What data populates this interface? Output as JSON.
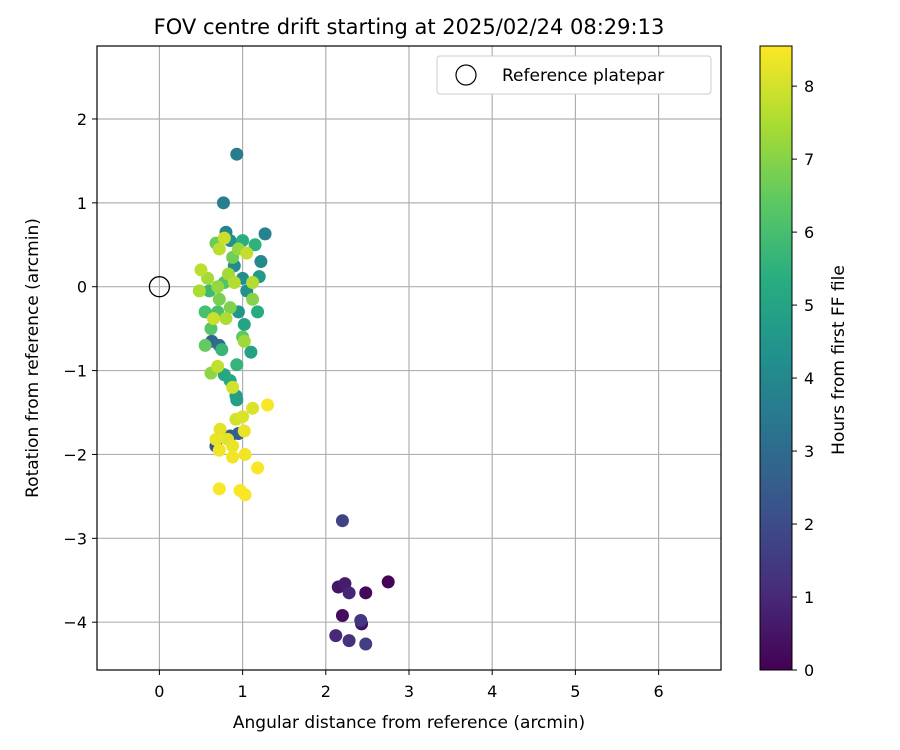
{
  "chart_data": {
    "type": "scatter",
    "title": "FOV centre drift starting at 2025/02/24 08:29:13",
    "xlabel": "Angular distance from reference (arcmin)",
    "ylabel": "Rotation from reference (arcmin)",
    "xlim": [
      -0.75,
      6.75
    ],
    "ylim": [
      -4.57,
      2.87
    ],
    "xticks": [
      0,
      1,
      2,
      3,
      4,
      5,
      6
    ],
    "yticks": [
      -4,
      -3,
      -2,
      -1,
      0,
      1,
      2
    ],
    "grid": true,
    "legend": {
      "position": "top-right",
      "entries": [
        "Reference platepar"
      ]
    },
    "reference_point": {
      "name": "Reference platepar",
      "x": 0,
      "y": 0,
      "marker": "open-circle"
    },
    "colorbar": {
      "label": "Hours from first FF file",
      "min": 0,
      "max": 8.55,
      "ticks": [
        0,
        1,
        2,
        3,
        4,
        5,
        6,
        7,
        8
      ],
      "colormap": "viridis"
    },
    "points": [
      {
        "x": 2.75,
        "y": -3.52,
        "c": 0.1
      },
      {
        "x": 2.48,
        "y": -3.65,
        "c": 0.2
      },
      {
        "x": 2.43,
        "y": -4.02,
        "c": 0.4
      },
      {
        "x": 2.2,
        "y": -3.92,
        "c": 0.3
      },
      {
        "x": 2.15,
        "y": -3.58,
        "c": 0.5
      },
      {
        "x": 2.23,
        "y": -3.54,
        "c": 0.7
      },
      {
        "x": 2.28,
        "y": -3.65,
        "c": 0.9
      },
      {
        "x": 2.12,
        "y": -4.16,
        "c": 1.0
      },
      {
        "x": 2.28,
        "y": -4.22,
        "c": 1.2
      },
      {
        "x": 2.42,
        "y": -3.98,
        "c": 1.4
      },
      {
        "x": 2.48,
        "y": -4.26,
        "c": 1.6
      },
      {
        "x": 2.2,
        "y": -2.79,
        "c": 1.7
      },
      {
        "x": 0.68,
        "y": -1.9,
        "c": 2.2
      },
      {
        "x": 0.85,
        "y": -1.78,
        "c": 2.5
      },
      {
        "x": 0.95,
        "y": -1.75,
        "c": 2.6
      },
      {
        "x": 0.63,
        "y": -0.65,
        "c": 2.8
      },
      {
        "x": 0.72,
        "y": -0.7,
        "c": 3.0
      },
      {
        "x": 0.93,
        "y": 1.58,
        "c": 3.6
      },
      {
        "x": 0.77,
        "y": 1.0,
        "c": 3.7
      },
      {
        "x": 1.27,
        "y": 0.63,
        "c": 3.8
      },
      {
        "x": 0.8,
        "y": 0.65,
        "c": 3.9
      },
      {
        "x": 1.22,
        "y": 0.3,
        "c": 4.0
      },
      {
        "x": 0.9,
        "y": 0.25,
        "c": 4.1
      },
      {
        "x": 1.0,
        "y": 0.1,
        "c": 4.2
      },
      {
        "x": 0.85,
        "y": 0.55,
        "c": 4.3
      },
      {
        "x": 1.05,
        "y": -0.05,
        "c": 4.4
      },
      {
        "x": 0.95,
        "y": -0.3,
        "c": 4.5
      },
      {
        "x": 1.2,
        "y": 0.12,
        "c": 4.6
      },
      {
        "x": 0.92,
        "y": -1.3,
        "c": 4.7
      },
      {
        "x": 0.93,
        "y": -1.35,
        "c": 4.8
      },
      {
        "x": 1.1,
        "y": -0.78,
        "c": 4.9
      },
      {
        "x": 1.02,
        "y": -0.45,
        "c": 5.0
      },
      {
        "x": 0.78,
        "y": -1.05,
        "c": 5.1
      },
      {
        "x": 0.85,
        "y": -1.12,
        "c": 5.2
      },
      {
        "x": 1.18,
        "y": -0.3,
        "c": 5.3
      },
      {
        "x": 1.0,
        "y": 0.55,
        "c": 5.4
      },
      {
        "x": 1.15,
        "y": 0.5,
        "c": 5.5
      },
      {
        "x": 0.93,
        "y": -0.93,
        "c": 5.6
      },
      {
        "x": 0.75,
        "y": -0.75,
        "c": 5.7
      },
      {
        "x": 0.6,
        "y": -0.05,
        "c": 5.8
      },
      {
        "x": 0.55,
        "y": -0.3,
        "c": 6.0
      },
      {
        "x": 0.7,
        "y": -0.3,
        "c": 6.1
      },
      {
        "x": 0.78,
        "y": 0.05,
        "c": 6.2
      },
      {
        "x": 0.62,
        "y": -0.5,
        "c": 6.3
      },
      {
        "x": 1.0,
        "y": -0.6,
        "c": 6.4
      },
      {
        "x": 0.55,
        "y": -0.7,
        "c": 6.5
      },
      {
        "x": 0.68,
        "y": 0.52,
        "c": 6.6
      },
      {
        "x": 0.88,
        "y": 0.35,
        "c": 6.7
      },
      {
        "x": 0.72,
        "y": -0.15,
        "c": 6.8
      },
      {
        "x": 0.85,
        "y": -0.25,
        "c": 6.9
      },
      {
        "x": 1.12,
        "y": -0.15,
        "c": 7.0
      },
      {
        "x": 0.62,
        "y": -1.03,
        "c": 7.1
      },
      {
        "x": 0.7,
        "y": 0.0,
        "c": 7.2
      },
      {
        "x": 0.95,
        "y": 0.45,
        "c": 7.2
      },
      {
        "x": 1.02,
        "y": -0.65,
        "c": 7.3
      },
      {
        "x": 0.58,
        "y": 0.1,
        "c": 7.4
      },
      {
        "x": 0.83,
        "y": 0.15,
        "c": 7.4
      },
      {
        "x": 0.48,
        "y": -0.05,
        "c": 7.5
      },
      {
        "x": 0.8,
        "y": -0.38,
        "c": 7.5
      },
      {
        "x": 0.9,
        "y": 0.05,
        "c": 7.6
      },
      {
        "x": 1.12,
        "y": 0.05,
        "c": 7.6
      },
      {
        "x": 0.5,
        "y": 0.2,
        "c": 7.7
      },
      {
        "x": 0.72,
        "y": 0.45,
        "c": 7.7
      },
      {
        "x": 1.05,
        "y": 0.4,
        "c": 7.8
      },
      {
        "x": 0.7,
        "y": -0.95,
        "c": 7.8
      },
      {
        "x": 0.65,
        "y": -0.38,
        "c": 7.9
      },
      {
        "x": 0.78,
        "y": 0.58,
        "c": 7.9
      },
      {
        "x": 0.88,
        "y": -1.2,
        "c": 8.0
      },
      {
        "x": 0.92,
        "y": -1.58,
        "c": 8.0
      },
      {
        "x": 1.12,
        "y": -1.45,
        "c": 8.1
      },
      {
        "x": 1.0,
        "y": -1.55,
        "c": 8.1
      },
      {
        "x": 0.73,
        "y": -1.7,
        "c": 8.2
      },
      {
        "x": 0.82,
        "y": -1.82,
        "c": 8.2
      },
      {
        "x": 1.02,
        "y": -1.72,
        "c": 8.3
      },
      {
        "x": 0.68,
        "y": -1.82,
        "c": 8.3
      },
      {
        "x": 0.88,
        "y": -1.9,
        "c": 8.3
      },
      {
        "x": 0.72,
        "y": -1.95,
        "c": 8.4
      },
      {
        "x": 0.88,
        "y": -2.03,
        "c": 8.4
      },
      {
        "x": 1.03,
        "y": -2.0,
        "c": 8.4
      },
      {
        "x": 1.18,
        "y": -2.16,
        "c": 8.5
      },
      {
        "x": 1.3,
        "y": -1.41,
        "c": 8.5
      },
      {
        "x": 0.72,
        "y": -2.41,
        "c": 8.5
      },
      {
        "x": 0.97,
        "y": -2.43,
        "c": 8.5
      },
      {
        "x": 1.03,
        "y": -2.48,
        "c": 8.5
      }
    ]
  }
}
